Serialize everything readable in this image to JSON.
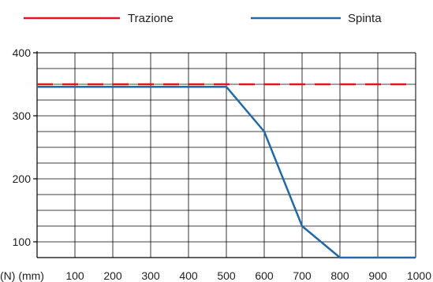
{
  "chart_data": {
    "type": "line",
    "title": "",
    "xlabel": "(N) (mm)",
    "ylabel": "",
    "x_ticks": [
      100,
      200,
      300,
      400,
      500,
      600,
      700,
      800,
      900,
      1000
    ],
    "y_ticks": [
      100,
      200,
      300,
      400
    ],
    "xlim": [
      0,
      1000
    ],
    "ylim": [
      75,
      400
    ],
    "grid": true,
    "legend_position": "top",
    "series": [
      {
        "name": "Trazione",
        "color": "#e3141e",
        "dash": "dashed",
        "x": [
          0,
          1000
        ],
        "y": [
          350,
          350
        ]
      },
      {
        "name": "Spinta",
        "color": "#1f6aad",
        "dash": "solid",
        "x": [
          0,
          500,
          600,
          700,
          800,
          1000
        ],
        "y": [
          346,
          346,
          275,
          125,
          75,
          75
        ]
      }
    ]
  }
}
